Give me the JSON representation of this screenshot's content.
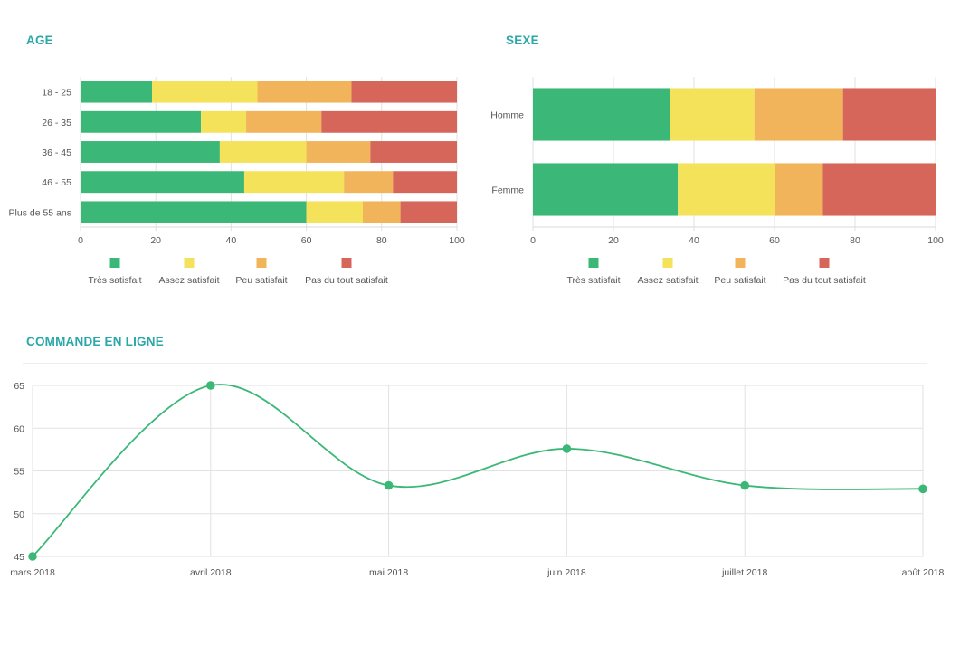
{
  "colors": {
    "title": "#2aa8a8",
    "tres_satisfait": "#3bb877",
    "assez_satisfait": "#f5e25b",
    "peu_satisfait": "#f2b45a",
    "pas_du_tout": "#d66659",
    "line": "#3bb877"
  },
  "panels": {
    "age_title": "AGE",
    "sexe_title": "SEXE",
    "commande_title": "COMMANDE EN LIGNE"
  },
  "chart_data": [
    {
      "id": "age",
      "type": "bar",
      "orientation": "horizontal",
      "stacked": true,
      "title": "AGE",
      "categories": [
        "18 - 25",
        "26 - 35",
        "36 - 45",
        "46 - 55",
        "Plus de 55 ans"
      ],
      "series": [
        {
          "name": "Très satisfait",
          "color": "#3bb877",
          "values": [
            19,
            32,
            37,
            43.5,
            60
          ]
        },
        {
          "name": "Assez satisfait",
          "color": "#f5e25b",
          "values": [
            28,
            12,
            23,
            26.5,
            15
          ]
        },
        {
          "name": "Peu satisfait",
          "color": "#f2b45a",
          "values": [
            25,
            20,
            17,
            13,
            10
          ]
        },
        {
          "name": "Pas du tout satisfait",
          "color": "#d66659",
          "values": [
            28,
            36,
            23,
            17,
            15
          ]
        }
      ],
      "xlim": [
        0,
        100
      ],
      "xticks": [
        "0",
        "20",
        "40",
        "60",
        "80",
        "100"
      ],
      "grid": true,
      "legend": "bottom"
    },
    {
      "id": "sexe",
      "type": "bar",
      "orientation": "horizontal",
      "stacked": true,
      "title": "SEXE",
      "categories": [
        "Homme",
        "Femme"
      ],
      "series": [
        {
          "name": "Très satisfait",
          "color": "#3bb877",
          "values": [
            34,
            36
          ]
        },
        {
          "name": "Assez satisfait",
          "color": "#f5e25b",
          "values": [
            21,
            24
          ]
        },
        {
          "name": "Peu satisfait",
          "color": "#f2b45a",
          "values": [
            22,
            12
          ]
        },
        {
          "name": "Pas du tout satisfait",
          "color": "#d66659",
          "values": [
            23,
            28
          ]
        }
      ],
      "xlim": [
        0,
        100
      ],
      "xticks": [
        "0",
        "20",
        "40",
        "60",
        "80",
        "100"
      ],
      "grid": true,
      "legend": "bottom"
    },
    {
      "id": "commande",
      "type": "line",
      "title": "COMMANDE EN LIGNE",
      "x": [
        "mars 2018",
        "avril 2018",
        "mai 2018",
        "juin 2018",
        "juillet 2018",
        "août 2018"
      ],
      "series": [
        {
          "color": "#3bb877",
          "values": [
            45,
            65,
            53.3,
            57.6,
            53.3,
            52.9
          ]
        }
      ],
      "ylim": [
        45,
        65
      ],
      "yticks": [
        "45",
        "50",
        "55",
        "60",
        "65"
      ],
      "smooth": true,
      "grid": true
    }
  ]
}
